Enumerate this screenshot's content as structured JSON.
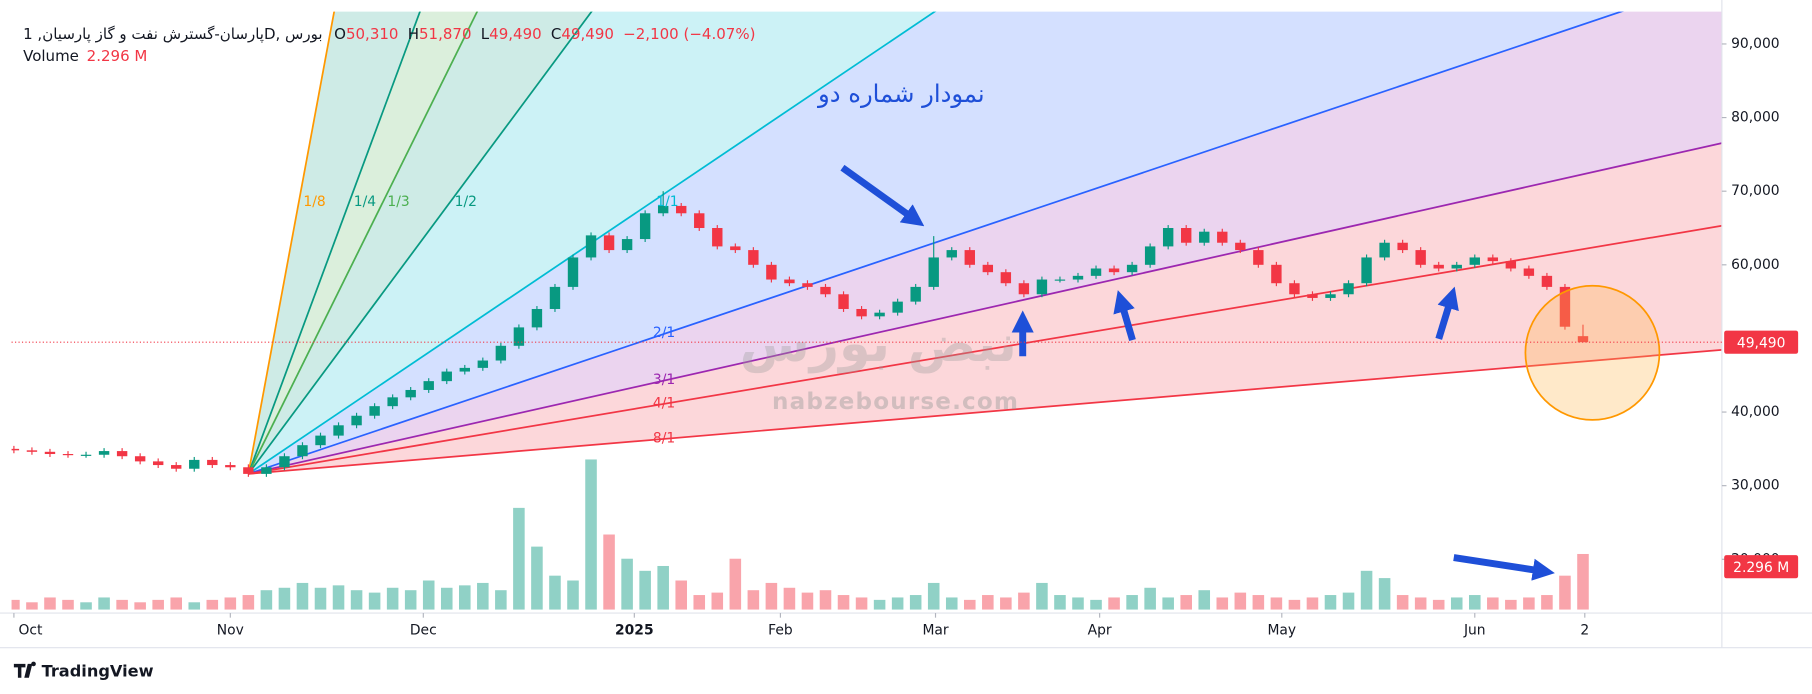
{
  "chart_data": {
    "type": "candlestick",
    "symbol": "پارسان-گسترش نفت و گاز پارسیان, 1D, بورس",
    "ohlc_legend": [
      {
        "key": "O",
        "value": "50,310"
      },
      {
        "key": "H",
        "value": "51,870"
      },
      {
        "key": "L",
        "value": "49,490"
      },
      {
        "key": "C",
        "value": "49,490"
      }
    ],
    "change": "−2,100 (−4.07%)",
    "annotation": "نمودار شماره دو",
    "watermark": {
      "logo": "نبض بورس",
      "site": "nabzebourse.com"
    },
    "brand": "TradingView",
    "up_color": "#089981",
    "down_color": "#f23645",
    "xlim": [
      -0.13,
      94.7
    ],
    "xticks": [
      {
        "value": 0,
        "label": "Oct"
      },
      {
        "value": 12,
        "label": "Nov"
      },
      {
        "value": 22.7,
        "label": "Dec"
      },
      {
        "value": 34.4,
        "label": "2025"
      },
      {
        "value": 42.5,
        "label": "Feb"
      },
      {
        "value": 51.1,
        "label": "Mar"
      },
      {
        "value": 60.2,
        "label": "Apr"
      },
      {
        "value": 70.3,
        "label": "May"
      },
      {
        "value": 81,
        "label": "Jun"
      },
      {
        "value": 87.1,
        "label": "2"
      }
    ],
    "ylim": [
      12700,
      94400
    ],
    "yticks": [
      {
        "value": 20000,
        "label": "20,000"
      },
      {
        "value": 30000,
        "label": "30,000"
      },
      {
        "value": 40000,
        "label": "40,000"
      },
      {
        "value": 60000,
        "label": "60,000"
      },
      {
        "value": 70000,
        "label": "70,000"
      },
      {
        "value": 80000,
        "label": "80,000"
      },
      {
        "value": 90000,
        "label": "90,000"
      }
    ],
    "grid": false,
    "open": [
      35000,
      34800,
      34600,
      34300,
      34200,
      34200,
      34700,
      34000,
      33300,
      32800,
      32300,
      33500,
      32800,
      32500,
      31600,
      32500,
      34000,
      35500,
      36800,
      38200,
      39500,
      40800,
      42000,
      43000,
      44200,
      45500,
      46000,
      47000,
      49000,
      51500,
      54000,
      57000,
      61000,
      64000,
      62000,
      63500,
      67000,
      68000,
      67000,
      65000,
      62500,
      62000,
      60000,
      58000,
      57500,
      57000,
      56000,
      54000,
      53000,
      53500,
      55000,
      57000,
      61000,
      62000,
      60000,
      59000,
      57500,
      56000,
      58000,
      58000,
      58500,
      59500,
      59000,
      60000,
      62500,
      65000,
      63000,
      64500,
      63000,
      62000,
      60000,
      57500,
      56000,
      55500,
      56000,
      57500,
      61000,
      63000,
      62000,
      60000,
      59500,
      60000,
      61000,
      60500,
      59500,
      58500,
      57000,
      50310
    ],
    "high": [
      35400,
      35200,
      35000,
      34700,
      34600,
      35100,
      35100,
      34400,
      33700,
      33200,
      33900,
      33900,
      33200,
      32900,
      32900,
      34400,
      35900,
      37200,
      38600,
      39900,
      41200,
      42400,
      43400,
      44600,
      45900,
      46400,
      47400,
      49400,
      51900,
      54400,
      57400,
      61400,
      64400,
      64400,
      63900,
      67400,
      70000,
      68400,
      67400,
      65400,
      62900,
      62400,
      60400,
      58400,
      57900,
      57400,
      56400,
      54400,
      53900,
      55400,
      57400,
      63900,
      62400,
      62400,
      60400,
      59400,
      57900,
      58400,
      58400,
      58900,
      59900,
      59900,
      60400,
      62900,
      65400,
      65400,
      64900,
      64900,
      63400,
      62400,
      60400,
      57900,
      56400,
      56400,
      57900,
      61400,
      63400,
      63400,
      62400,
      60400,
      60400,
      61400,
      61400,
      60900,
      59900,
      58900,
      57400,
      51870
    ],
    "low": [
      34400,
      34200,
      33900,
      33800,
      33800,
      33800,
      33600,
      32900,
      32400,
      31900,
      31900,
      32400,
      32100,
      31200,
      31200,
      32100,
      33600,
      35100,
      36400,
      37800,
      39100,
      40400,
      41600,
      42600,
      43800,
      45100,
      45600,
      46600,
      48600,
      51100,
      53600,
      56600,
      60600,
      61600,
      61600,
      63100,
      66600,
      66600,
      64600,
      62100,
      61600,
      59600,
      57600,
      57100,
      56600,
      55600,
      53600,
      52600,
      52600,
      53100,
      54600,
      56600,
      60600,
      59600,
      58600,
      57100,
      55600,
      55600,
      57600,
      57600,
      58100,
      58600,
      58600,
      59600,
      62100,
      62600,
      62600,
      62600,
      61600,
      59600,
      57100,
      55600,
      55100,
      55100,
      55600,
      57100,
      60600,
      61600,
      59600,
      59100,
      59100,
      59600,
      60100,
      59100,
      58100,
      56600,
      51190,
      49490
    ],
    "close": [
      34800,
      34600,
      34300,
      34200,
      34200,
      34700,
      34000,
      33300,
      32800,
      32300,
      33500,
      32800,
      32500,
      31600,
      32500,
      34000,
      35500,
      36800,
      38200,
      39500,
      40800,
      42000,
      43000,
      44200,
      45500,
      46000,
      47000,
      49000,
      51500,
      54000,
      57000,
      61000,
      64000,
      62000,
      63500,
      67000,
      68000,
      67000,
      65000,
      62500,
      62000,
      60000,
      58000,
      57500,
      57000,
      56000,
      54000,
      53000,
      53500,
      55000,
      57000,
      61000,
      62000,
      60000,
      59000,
      57500,
      56000,
      58000,
      58000,
      58500,
      59500,
      59000,
      60000,
      62500,
      65000,
      63000,
      64500,
      63000,
      62000,
      60000,
      57500,
      56000,
      55500,
      56000,
      57500,
      61000,
      63000,
      62000,
      60000,
      59500,
      60000,
      61000,
      60500,
      59500,
      58500,
      57000,
      51590,
      49490
    ],
    "volume": {
      "name": "Volume",
      "value_label": "2.296 M",
      "ylim": [
        0,
        24.7
      ],
      "values": [
        0.4,
        0.3,
        0.5,
        0.4,
        0.3,
        0.5,
        0.4,
        0.3,
        0.4,
        0.5,
        0.3,
        0.4,
        0.5,
        0.6,
        0.8,
        0.9,
        1.1,
        0.9,
        1.0,
        0.8,
        0.7,
        0.9,
        0.8,
        1.2,
        0.9,
        1.0,
        1.1,
        0.8,
        4.2,
        2.6,
        1.4,
        1.2,
        6.2,
        3.1,
        2.1,
        1.6,
        1.8,
        1.2,
        0.6,
        0.7,
        2.1,
        0.8,
        1.1,
        0.9,
        0.7,
        0.8,
        0.6,
        0.5,
        0.4,
        0.5,
        0.6,
        1.1,
        0.5,
        0.4,
        0.6,
        0.5,
        0.7,
        1.1,
        0.6,
        0.5,
        0.4,
        0.5,
        0.6,
        0.9,
        0.5,
        0.6,
        0.8,
        0.5,
        0.7,
        0.6,
        0.5,
        0.4,
        0.5,
        0.6,
        0.7,
        1.6,
        1.3,
        0.6,
        0.5,
        0.4,
        0.5,
        0.6,
        0.5,
        0.4,
        0.5,
        0.6,
        1.4,
        2.296
      ]
    },
    "gann_fan": {
      "origin_x": 13,
      "origin_y": 31600,
      "slope": 1650,
      "levels": [
        {
          "label": "1/8",
          "ratio": 8,
          "color": "#ff9800"
        },
        {
          "label": "1/4",
          "ratio": 4,
          "color": "#089981"
        },
        {
          "label": "1/3",
          "ratio": 3,
          "color": "#4caf50"
        },
        {
          "label": "1/2",
          "ratio": 2,
          "color": "#089981"
        },
        {
          "label": "1/1",
          "ratio": 1,
          "color": "#00bcd4"
        },
        {
          "label": "2/1",
          "ratio": 0.5,
          "color": "#2962ff"
        },
        {
          "label": "3/1",
          "ratio": 0.3333,
          "color": "#9c27b0"
        },
        {
          "label": "4/1",
          "ratio": 0.25,
          "color": "#f23645"
        },
        {
          "label": "8/1",
          "ratio": 0.125,
          "color": "#f23645"
        }
      ]
    }
  }
}
